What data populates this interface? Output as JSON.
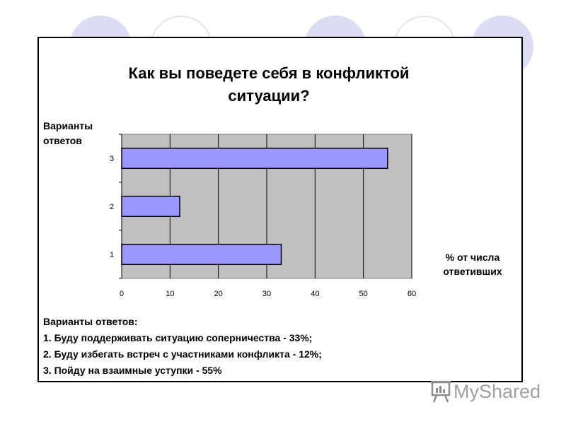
{
  "chart_data": {
    "type": "bar",
    "orientation": "horizontal",
    "title": "Как вы поведете себя в конфликтой ситуации?",
    "ylabel": "Варианты ответов",
    "xlabel": "% от числа ответивших",
    "categories": [
      "1",
      "2",
      "3"
    ],
    "values": [
      33,
      12,
      55
    ],
    "xlim": [
      0,
      60
    ],
    "x_ticks": [
      "0",
      "10",
      "20",
      "30",
      "40",
      "50",
      "60"
    ],
    "grid": true,
    "bar_color": "#9999ff",
    "plot_background": "#c0c0c0"
  },
  "answers": {
    "heading": "Варианты ответов:",
    "items": [
      "1. Буду поддерживать ситуацию соперничества - 33%;",
      "2. Буду избегать встреч с участниками конфликта - 12%;",
      "3. Пойду на взаимные уступки - 55%"
    ]
  },
  "logo": {
    "text": "MyShared",
    "icon": "presentation-board-icon"
  }
}
